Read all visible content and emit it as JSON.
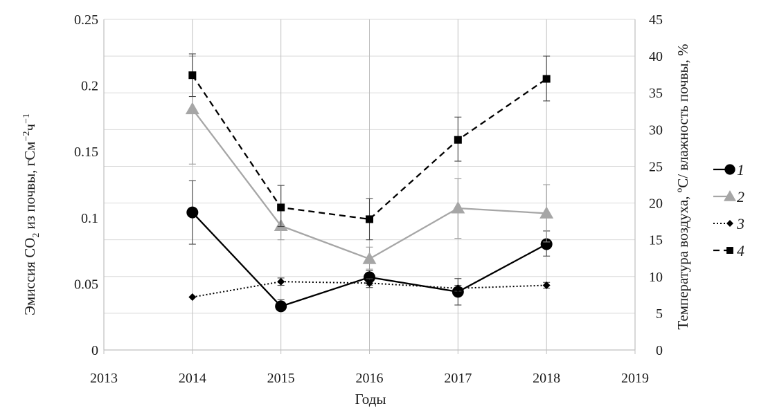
{
  "chart_data": {
    "type": "line",
    "xlabel": "Годы",
    "ylabel_left": {
      "prefix": "Эмиссия СО",
      "sub": "2",
      "mid": " из почвы, гСм",
      "sup1": "−2",
      "mid2": "ч",
      "sup2": "−1"
    },
    "ylabel_right": "Температура воздуха, ºС/ влажность почвы, %",
    "x_ticks": [
      "2013",
      "2014",
      "2015",
      "2016",
      "2017",
      "2018",
      "2019"
    ],
    "y_left_ticks": [
      "0",
      "0.05",
      "0.1",
      "0.15",
      "0.2",
      "0.25"
    ],
    "y_right_ticks": [
      "0",
      "5",
      "10",
      "15",
      "20",
      "25",
      "30",
      "35",
      "40",
      "45"
    ],
    "xlim": [
      2013,
      2019
    ],
    "ylim_left": [
      0,
      0.25
    ],
    "ylim_right": [
      0,
      45
    ],
    "grid": "horizontal",
    "legend_position": "right",
    "series": [
      {
        "name": "1",
        "axis": "left",
        "style": "solid",
        "marker": "circle",
        "color": "#000000",
        "x": [
          2014,
          2015,
          2016,
          2017,
          2018
        ],
        "values": [
          0.104,
          0.033,
          0.055,
          0.044,
          0.08
        ],
        "err_low": [
          0.08,
          0.03,
          0.049,
          0.034,
          0.071
        ],
        "err_high": [
          0.128,
          0.038,
          0.06,
          0.054,
          0.09
        ]
      },
      {
        "name": "2",
        "axis": "right",
        "style": "solid",
        "marker": "triangle",
        "color": "#a6a6a6",
        "x": [
          2014,
          2015,
          2016,
          2017,
          2018
        ],
        "values": [
          32.8,
          16.9,
          12.4,
          19.3,
          18.6
        ],
        "err_low": [
          25.3,
          15.0,
          11.0,
          15.2,
          14.7
        ],
        "err_high": [
          40.0,
          22.4,
          14.0,
          23.3,
          22.5
        ]
      },
      {
        "name": "3",
        "axis": "right",
        "style": "dotted",
        "marker": "diamond",
        "color": "#000000",
        "x": [
          2014,
          2015,
          2016,
          2017,
          2018
        ],
        "values": [
          7.2,
          9.3,
          9.1,
          8.4,
          8.8
        ],
        "err_low": [
          7.2,
          8.8,
          8.5,
          8.0,
          8.4
        ],
        "err_high": [
          7.2,
          9.8,
          9.7,
          8.8,
          9.2
        ]
      },
      {
        "name": "4",
        "axis": "right",
        "style": "dashed",
        "marker": "square",
        "color": "#000000",
        "x": [
          2014,
          2015,
          2016,
          2017,
          2018
        ],
        "values": [
          37.4,
          19.4,
          17.8,
          28.6,
          36.9
        ],
        "err_low": [
          34.5,
          16.8,
          15.0,
          25.7,
          33.9
        ],
        "err_high": [
          40.3,
          22.4,
          20.6,
          31.7,
          40.0
        ]
      }
    ]
  }
}
